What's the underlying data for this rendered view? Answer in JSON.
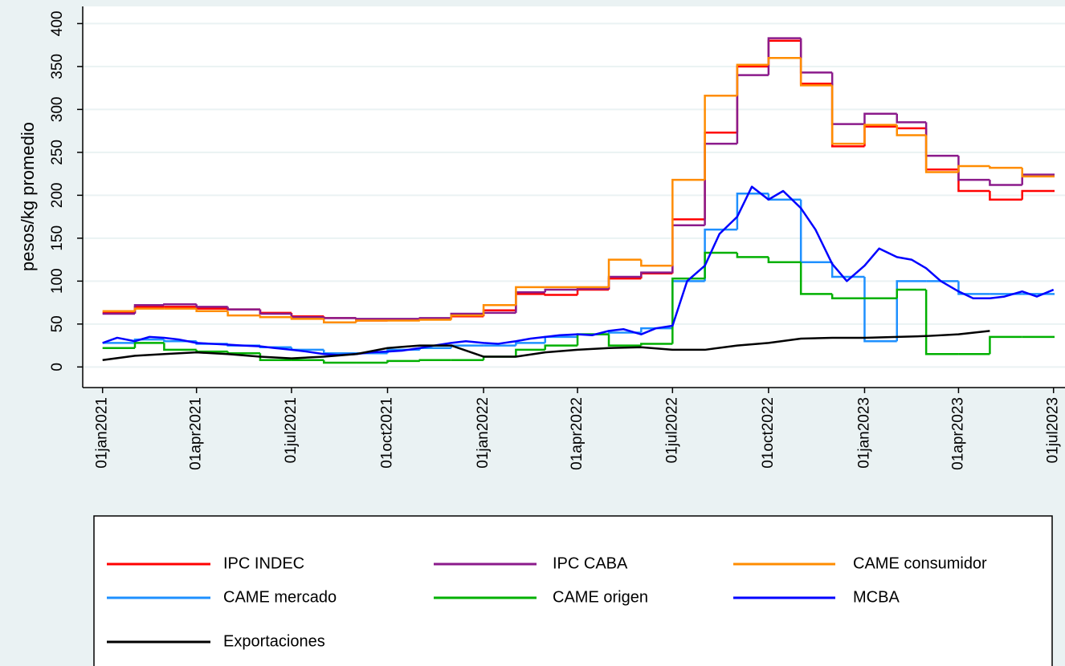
{
  "chart_data": {
    "type": "line",
    "ylabel": "pesos/kg promedio",
    "xlim": [
      "2020-12-13",
      "2023-07-12"
    ],
    "xticks": [
      {
        "value": "2021-01-01",
        "label": "01jan2021"
      },
      {
        "value": "2021-04-01",
        "label": "01apr2021"
      },
      {
        "value": "2021-07-01",
        "label": "01jul2021"
      },
      {
        "value": "2021-10-01",
        "label": "01oct2021"
      },
      {
        "value": "2022-01-01",
        "label": "01jan2022"
      },
      {
        "value": "2022-04-01",
        "label": "01apr2022"
      },
      {
        "value": "2022-07-01",
        "label": "01jul2022"
      },
      {
        "value": "2022-10-01",
        "label": "01oct2022"
      },
      {
        "value": "2023-01-01",
        "label": "01jan2023"
      },
      {
        "value": "2023-04-01",
        "label": "01apr2023"
      },
      {
        "value": "2023-07-01",
        "label": "01jul2023"
      }
    ],
    "ylim": [
      -24,
      420
    ],
    "yticks": [
      0,
      50,
      100,
      150,
      200,
      250,
      300,
      350,
      400
    ],
    "grid": true,
    "legend": "bottom",
    "x": [
      "2021-01-01",
      "2021-02-01",
      "2021-03-01",
      "2021-04-01",
      "2021-05-01",
      "2021-06-01",
      "2021-07-01",
      "2021-08-01",
      "2021-09-01",
      "2021-10-01",
      "2021-11-01",
      "2021-12-01",
      "2022-01-01",
      "2022-02-01",
      "2022-03-01",
      "2022-04-01",
      "2022-05-01",
      "2022-06-01",
      "2022-07-01",
      "2022-08-01",
      "2022-09-01",
      "2022-10-01",
      "2022-11-01",
      "2022-12-01",
      "2023-01-01",
      "2023-02-01",
      "2023-03-01",
      "2023-04-01",
      "2023-05-01",
      "2023-06-01"
    ],
    "series": [
      {
        "name": "IPC INDEC",
        "color": "#ff0000",
        "step": true,
        "values": [
          63,
          70,
          70,
          68,
          67,
          63,
          59,
          57,
          54,
          55,
          56,
          59,
          66,
          85,
          84,
          90,
          103,
          109,
          172,
          273,
          350,
          380,
          330,
          257,
          280,
          278,
          230,
          205,
          195,
          205
        ]
      },
      {
        "name": "IPC CABA",
        "color": "#8b1a8b",
        "step": true,
        "values": [
          62,
          72,
          73,
          70,
          67,
          62,
          58,
          57,
          56,
          56,
          57,
          62,
          63,
          87,
          90,
          91,
          105,
          110,
          165,
          260,
          340,
          383,
          343,
          283,
          295,
          285,
          246,
          218,
          212,
          224
        ]
      },
      {
        "name": "CAME consumidor",
        "color": "#ff8c00",
        "step": true,
        "values": [
          65,
          68,
          68,
          65,
          60,
          58,
          56,
          52,
          54,
          54,
          55,
          60,
          72,
          93,
          93,
          93,
          125,
          118,
          218,
          316,
          352,
          360,
          328,
          260,
          282,
          270,
          227,
          234,
          232,
          222
        ]
      },
      {
        "name": "CAME mercado",
        "color": "#1e90ff",
        "step": true,
        "values": [
          28,
          32,
          30,
          27,
          25,
          23,
          20,
          16,
          16,
          20,
          22,
          25,
          25,
          28,
          35,
          38,
          40,
          45,
          100,
          160,
          202,
          195,
          122,
          105,
          30,
          100,
          100,
          85,
          85,
          85
        ]
      },
      {
        "name": "CAME origen",
        "color": "#00b000",
        "step": true,
        "values": [
          22,
          28,
          20,
          18,
          16,
          8,
          8,
          5,
          5,
          7,
          8,
          8,
          12,
          20,
          25,
          38,
          25,
          27,
          103,
          133,
          128,
          122,
          85,
          80,
          80,
          90,
          15,
          15,
          35,
          35
        ]
      },
      {
        "name": "MCBA",
        "color": "#0000ff",
        "step": false,
        "x": [
          "2021-01-01",
          "2021-01-15",
          "2021-02-01",
          "2021-02-15",
          "2021-03-01",
          "2021-03-15",
          "2021-04-01",
          "2021-04-15",
          "2021-05-01",
          "2021-05-15",
          "2021-06-01",
          "2021-06-15",
          "2021-07-01",
          "2021-07-15",
          "2021-08-01",
          "2021-08-15",
          "2021-09-01",
          "2021-09-15",
          "2021-10-01",
          "2021-10-15",
          "2021-11-01",
          "2021-11-15",
          "2021-12-01",
          "2021-12-15",
          "2022-01-01",
          "2022-01-15",
          "2022-02-01",
          "2022-02-15",
          "2022-03-01",
          "2022-03-15",
          "2022-04-01",
          "2022-04-15",
          "2022-05-01",
          "2022-05-15",
          "2022-06-01",
          "2022-06-15",
          "2022-07-01",
          "2022-07-15",
          "2022-08-01",
          "2022-08-15",
          "2022-09-01",
          "2022-09-15",
          "2022-10-01",
          "2022-10-15",
          "2022-11-01",
          "2022-11-15",
          "2022-12-01",
          "2022-12-15",
          "2023-01-01",
          "2023-01-15",
          "2023-02-01",
          "2023-02-15",
          "2023-03-01",
          "2023-03-15",
          "2023-04-01",
          "2023-04-15",
          "2023-05-01",
          "2023-05-15",
          "2023-06-01",
          "2023-06-15",
          "2023-07-01"
        ],
        "values": [
          28,
          34,
          30,
          35,
          34,
          32,
          28,
          27,
          26,
          25,
          24,
          22,
          20,
          18,
          15,
          14,
          15,
          17,
          18,
          19,
          22,
          25,
          28,
          30,
          28,
          27,
          30,
          33,
          35,
          37,
          38,
          37,
          42,
          44,
          38,
          45,
          48,
          100,
          118,
          155,
          175,
          210,
          195,
          205,
          185,
          160,
          120,
          100,
          118,
          138,
          128,
          125,
          115,
          100,
          88,
          80,
          80,
          82,
          88,
          82,
          90
        ]
      },
      {
        "name": "Exportaciones",
        "color": "#000000",
        "step": false,
        "values": [
          8,
          13,
          15,
          17,
          15,
          12,
          10,
          12,
          15,
          22,
          25,
          25,
          12,
          12,
          17,
          20,
          22,
          23,
          20,
          20,
          25,
          28,
          33,
          34,
          34,
          35,
          36,
          38,
          42,
          null
        ]
      }
    ]
  }
}
